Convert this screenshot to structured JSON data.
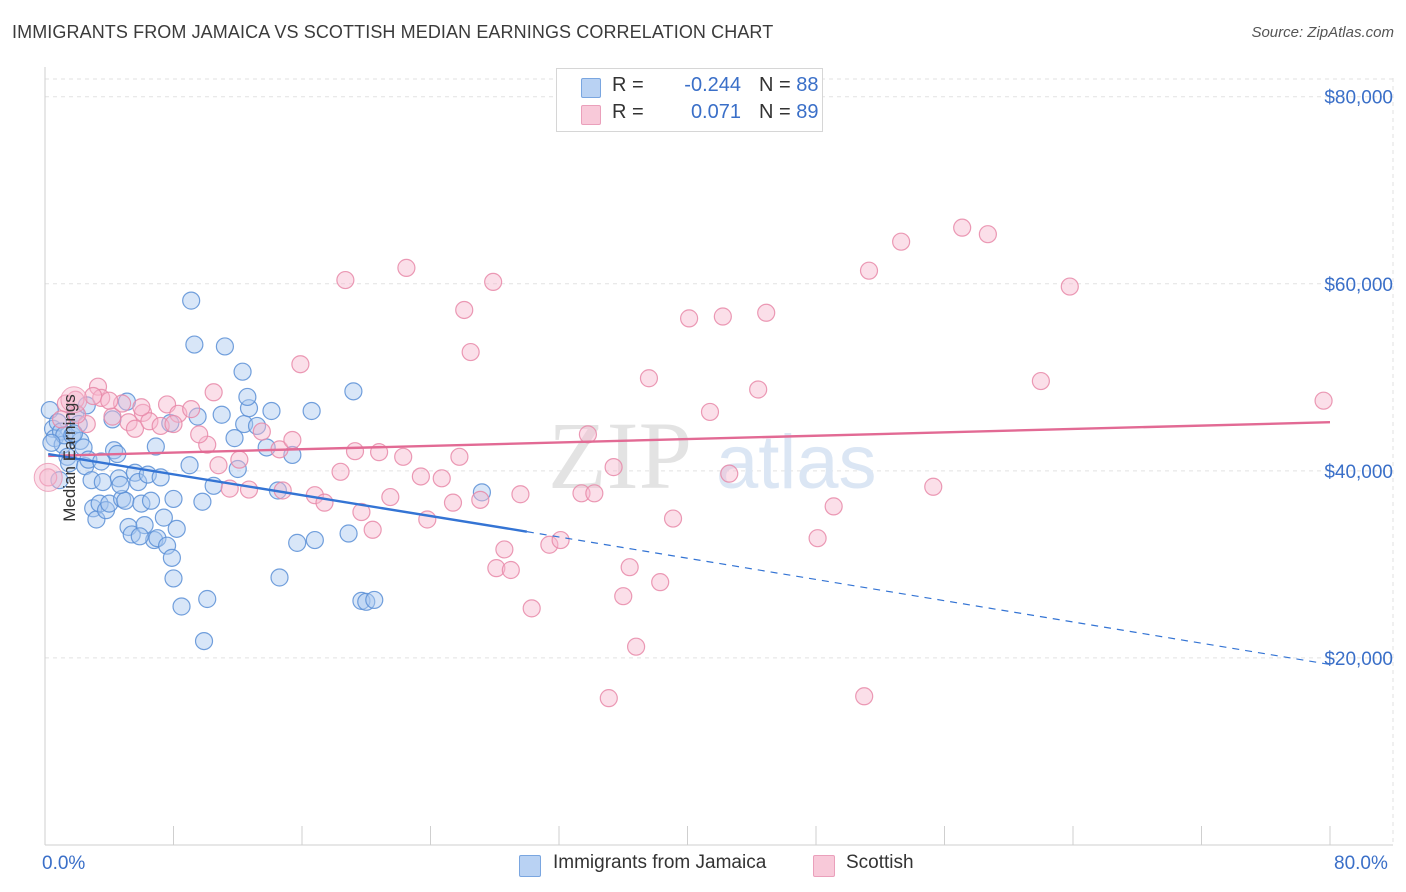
{
  "title": "IMMIGRANTS FROM JAMAICA VS SCOTTISH MEDIAN EARNINGS CORRELATION CHART",
  "source": "Source: ZipAtlas.com",
  "watermark": {
    "zip": "ZIP",
    "atlas": "atlas"
  },
  "legend_top": {
    "rows": [
      {
        "r_label": "R =",
        "r_value": "-0.244",
        "n_label": "N =",
        "n_value": "88"
      },
      {
        "r_label": "R =",
        "r_value": "0.071",
        "n_label": "N =",
        "n_value": "89"
      }
    ]
  },
  "legend_bottom": {
    "items": [
      {
        "label": "Immigrants from Jamaica"
      },
      {
        "label": "Scottish"
      }
    ]
  },
  "chart_data": {
    "type": "scatter",
    "title": "IMMIGRANTS FROM JAMAICA VS SCOTTISH MEDIAN EARNINGS CORRELATION CHART",
    "xlabel": "",
    "ylabel": "Median Earnings",
    "xlim": [
      0,
      80
    ],
    "ylim": [
      0,
      82000
    ],
    "x_tick_labels": [
      "0.0%",
      "80.0%"
    ],
    "y_ticks": [
      20000,
      40000,
      60000,
      80000
    ],
    "y_tick_labels": [
      "$20,000",
      "$40,000",
      "$60,000",
      "$80,000"
    ],
    "grid": "horizontal dashed",
    "colors": {
      "jamaica_fill": "#a9c8f0",
      "jamaica_stroke": "#5b8fd6",
      "jamaica_line": "#3474d4",
      "scottish_fill": "#f6b9ce",
      "scottish_stroke": "#e888a8",
      "scottish_line": "#e26a94",
      "accent_text": "#3a6fc8"
    },
    "series": [
      {
        "name": "Immigrants from Jamaica",
        "r": -0.244,
        "n": 88,
        "trend": {
          "x0": 0.2,
          "y0": 41800,
          "x1": 30,
          "y1": 33500,
          "dash_to_x": 80,
          "dash_to_y": 19300
        },
        "points": [
          [
            0.3,
            46500
          ],
          [
            0.5,
            44500
          ],
          [
            0.6,
            43500
          ],
          [
            0.8,
            45200
          ],
          [
            1.0,
            44200
          ],
          [
            1.1,
            42800
          ],
          [
            1.2,
            43800
          ],
          [
            1.4,
            41500
          ],
          [
            1.5,
            40800
          ],
          [
            1.7,
            43800
          ],
          [
            1.9,
            46200
          ],
          [
            2.1,
            45000
          ],
          [
            2.2,
            43200
          ],
          [
            2.4,
            42500
          ],
          [
            2.5,
            40500
          ],
          [
            2.7,
            41200
          ],
          [
            2.9,
            39000
          ],
          [
            3.0,
            36000
          ],
          [
            3.2,
            34800
          ],
          [
            3.4,
            36500
          ],
          [
            3.6,
            38800
          ],
          [
            3.8,
            35800
          ],
          [
            4.0,
            36500
          ],
          [
            4.2,
            45500
          ],
          [
            4.3,
            42200
          ],
          [
            4.5,
            41800
          ],
          [
            4.6,
            39200
          ],
          [
            4.8,
            37000
          ],
          [
            5.0,
            36800
          ],
          [
            5.2,
            34000
          ],
          [
            5.4,
            33200
          ],
          [
            5.6,
            39800
          ],
          [
            5.8,
            38800
          ],
          [
            6.0,
            36500
          ],
          [
            6.2,
            34200
          ],
          [
            6.4,
            39600
          ],
          [
            6.6,
            36800
          ],
          [
            6.8,
            32600
          ],
          [
            7.0,
            32800
          ],
          [
            7.2,
            39300
          ],
          [
            7.4,
            35000
          ],
          [
            7.6,
            32000
          ],
          [
            7.8,
            45100
          ],
          [
            8.0,
            37000
          ],
          [
            8.2,
            33800
          ],
          [
            8.0,
            28500
          ],
          [
            8.5,
            25500
          ],
          [
            9.3,
            53500
          ],
          [
            9.5,
            45800
          ],
          [
            9.8,
            36700
          ],
          [
            9.1,
            58200
          ],
          [
            10.1,
            26300
          ],
          [
            11.2,
            53300
          ],
          [
            11.0,
            46000
          ],
          [
            9.9,
            21800
          ],
          [
            12.4,
            45000
          ],
          [
            12.7,
            46700
          ],
          [
            13.2,
            44800
          ],
          [
            12.3,
            50600
          ],
          [
            12.6,
            47900
          ],
          [
            13.8,
            42500
          ],
          [
            14.1,
            46400
          ],
          [
            14.6,
            28600
          ],
          [
            15.4,
            41700
          ],
          [
            16.8,
            32600
          ],
          [
            16.6,
            46400
          ],
          [
            18.9,
            33300
          ],
          [
            19.7,
            26100
          ],
          [
            19.2,
            48500
          ],
          [
            20.0,
            26000
          ],
          [
            20.5,
            26200
          ],
          [
            15.7,
            32300
          ],
          [
            27.2,
            37700
          ],
          [
            0.4,
            43000
          ],
          [
            1.8,
            44000
          ],
          [
            2.6,
            47000
          ],
          [
            3.5,
            41000
          ],
          [
            0.9,
            39000
          ],
          [
            5.1,
            47400
          ],
          [
            6.9,
            42600
          ],
          [
            4.7,
            38500
          ],
          [
            5.9,
            33000
          ],
          [
            7.9,
            30700
          ],
          [
            9.0,
            40600
          ],
          [
            10.5,
            38400
          ],
          [
            11.8,
            43500
          ],
          [
            12.0,
            40200
          ],
          [
            14.5,
            37900
          ]
        ]
      },
      {
        "name": "Scottish",
        "r": 0.071,
        "n": 89,
        "trend": {
          "x0": 0.2,
          "y0": 41600,
          "x1": 80,
          "y1": 45200
        },
        "points": [
          [
            0.2,
            39300
          ],
          [
            1.3,
            47200
          ],
          [
            1.9,
            47600
          ],
          [
            2.6,
            45000
          ],
          [
            3.3,
            49000
          ],
          [
            3.5,
            47800
          ],
          [
            4.2,
            45800
          ],
          [
            4.8,
            47200
          ],
          [
            5.2,
            45200
          ],
          [
            5.6,
            44500
          ],
          [
            6.1,
            46200
          ],
          [
            6.5,
            45300
          ],
          [
            7.2,
            44800
          ],
          [
            7.6,
            47100
          ],
          [
            8.3,
            46100
          ],
          [
            9.1,
            46600
          ],
          [
            10.1,
            42800
          ],
          [
            10.5,
            48400
          ],
          [
            10.8,
            40600
          ],
          [
            11.5,
            38100
          ],
          [
            12.1,
            41200
          ],
          [
            12.7,
            38000
          ],
          [
            13.5,
            44200
          ],
          [
            14.6,
            42300
          ],
          [
            14.8,
            37900
          ],
          [
            15.4,
            43300
          ],
          [
            15.9,
            51400
          ],
          [
            16.8,
            37400
          ],
          [
            17.4,
            36600
          ],
          [
            18.4,
            39900
          ],
          [
            18.7,
            60400
          ],
          [
            19.3,
            42100
          ],
          [
            19.7,
            35600
          ],
          [
            20.4,
            33700
          ],
          [
            20.8,
            42000
          ],
          [
            21.5,
            37200
          ],
          [
            22.3,
            41500
          ],
          [
            22.5,
            61700
          ],
          [
            23.4,
            39400
          ],
          [
            23.8,
            34800
          ],
          [
            24.7,
            39200
          ],
          [
            25.4,
            36600
          ],
          [
            25.8,
            41500
          ],
          [
            26.1,
            57200
          ],
          [
            26.5,
            52700
          ],
          [
            27.1,
            36900
          ],
          [
            27.9,
            60200
          ],
          [
            28.1,
            29600
          ],
          [
            28.6,
            31600
          ],
          [
            29.0,
            29400
          ],
          [
            29.6,
            37500
          ],
          [
            30.3,
            25300
          ],
          [
            31.4,
            32100
          ],
          [
            32.1,
            32600
          ],
          [
            33.4,
            37600
          ],
          [
            33.8,
            43900
          ],
          [
            34.2,
            37600
          ],
          [
            35.1,
            15700
          ],
          [
            35.4,
            40400
          ],
          [
            36.0,
            26600
          ],
          [
            36.4,
            29700
          ],
          [
            36.8,
            21200
          ],
          [
            37.6,
            49900
          ],
          [
            38.3,
            28100
          ],
          [
            39.1,
            34900
          ],
          [
            40.1,
            56300
          ],
          [
            41.4,
            46300
          ],
          [
            42.2,
            56500
          ],
          [
            42.6,
            39700
          ],
          [
            44.4,
            48700
          ],
          [
            44.9,
            56900
          ],
          [
            48.1,
            32800
          ],
          [
            49.1,
            36200
          ],
          [
            51.0,
            15900
          ],
          [
            51.3,
            61400
          ],
          [
            53.3,
            64500
          ],
          [
            55.3,
            38300
          ],
          [
            57.1,
            66000
          ],
          [
            58.7,
            65300
          ],
          [
            62.0,
            49600
          ],
          [
            63.8,
            59700
          ],
          [
            79.6,
            47500
          ],
          [
            1.0,
            45500
          ],
          [
            2.0,
            46000
          ],
          [
            3.0,
            48000
          ],
          [
            4.0,
            47500
          ],
          [
            6.0,
            46800
          ],
          [
            8.0,
            45000
          ],
          [
            9.6,
            43900
          ]
        ]
      }
    ]
  }
}
